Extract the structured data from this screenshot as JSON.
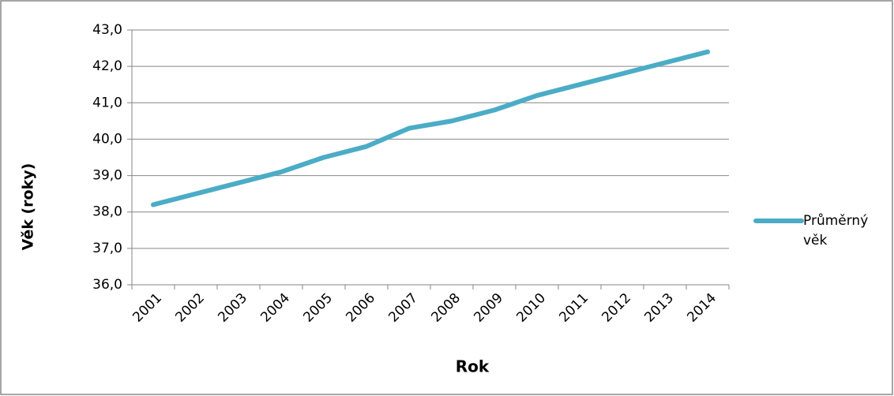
{
  "chart_data": {
    "type": "line",
    "x_label": "Rok",
    "y_label": "Věk (roky)",
    "categories": [
      "2001",
      "2002",
      "2003",
      "2004",
      "2005",
      "2006",
      "2007",
      "2008",
      "2009",
      "2010",
      "2011",
      "2012",
      "2013",
      "2014"
    ],
    "series": [
      {
        "name": "Průměrný věk",
        "color": "#4bacc6",
        "values": [
          38.2,
          38.5,
          38.8,
          39.1,
          39.5,
          39.8,
          40.3,
          40.5,
          40.8,
          41.2,
          41.5,
          41.8,
          42.1,
          42.4
        ]
      }
    ],
    "ylim": [
      36,
      43
    ],
    "yticks": [
      {
        "value": 36,
        "label": "36,0"
      },
      {
        "value": 37,
        "label": "37,0"
      },
      {
        "value": 38,
        "label": "38,0"
      },
      {
        "value": 39,
        "label": "39,0"
      },
      {
        "value": 40,
        "label": "40,0"
      },
      {
        "value": 41,
        "label": "41,0"
      },
      {
        "value": 42,
        "label": "42,0"
      },
      {
        "value": 43,
        "label": "43,0"
      }
    ],
    "grid": true,
    "legend": "right"
  }
}
